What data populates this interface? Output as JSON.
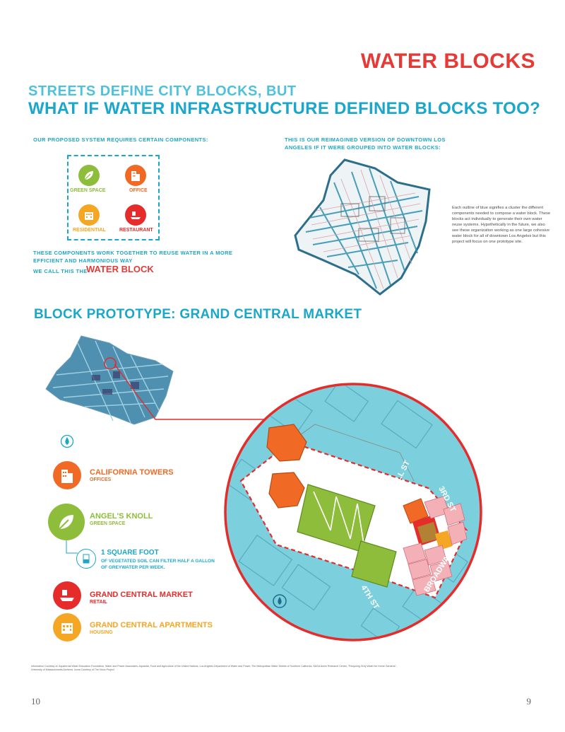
{
  "header": {
    "title": "WATER BLOCKS",
    "subtitle_line1": "STREETS DEFINE CITY BLOCKS, BUT",
    "subtitle_line2": "WHAT IF WATER INFRASTRUCTURE DEFINED BLOCKS TOO?"
  },
  "components": {
    "intro": "OUR PROPOSED SYSTEM REQUIRES CERTAIN COMPONENTS:",
    "items": [
      {
        "label": "GREEN SPACE",
        "icon": "leaf-icon",
        "color": "#8dbd3a"
      },
      {
        "label": "OFFICE",
        "icon": "building-icon",
        "color": "#f06a25"
      },
      {
        "label": "RESIDENTIAL",
        "icon": "house-icon",
        "color": "#f5a623"
      },
      {
        "label": "RESTAURANT",
        "icon": "food-icon",
        "color": "#e62b2b"
      }
    ],
    "together": "THESE COMPONENTS WORK TOGETHER TO REUSE WATER IN A MORE EFFICIENT AND HARMONIOUS WAY",
    "we_call": "WE CALL THIS THE",
    "water_block": "WATER BLOCK"
  },
  "reimagined": {
    "caption": "THIS IS OUR REIMAGINED VERSION OF DOWNTOWN LOS ANGELES IF IT WERE GROUPED INTO WATER BLOCKS:",
    "description": "Each outline of blue signifies a cluster the different components needed to compose a water block. These blocks act individually to generate their own water reuse systems. Hypothetically in the future, we also see these organization working as one large cohesive water block for all of downtown Los Angeles but this project will focus on one prototype site."
  },
  "prototype": {
    "title": "BLOCK PROTOTYPE: GRAND CENTRAL MARKET",
    "legend": [
      {
        "title": "CALIFORNIA TOWERS",
        "sub": "OFFICES",
        "color": "#f06a25",
        "icon": "building-icon"
      },
      {
        "title": "ANGEL'S KNOLL",
        "sub": "GREEN SPACE",
        "color": "#8dbd3a",
        "icon": "leaf-icon"
      },
      {
        "title": "GRAND CENTRAL MARKET",
        "sub": "RETAIL",
        "color": "#e62b2b",
        "icon": "food-icon"
      },
      {
        "title": "GRAND CENTRAL APARTMENTS",
        "sub": "HOUSING",
        "color": "#f5a623",
        "icon": "house-icon"
      }
    ],
    "soil_title": "1 SQUARE FOOT",
    "soil_sub": "OF VEGETATED SOIL CAN FILTER HALF A GALLON OF GREYWATER PER WEEK.",
    "streets": [
      "HILL ST",
      "3RD ST",
      "BROADWAY",
      "4TH ST"
    ]
  },
  "footnote": "Information Courtesy of: Aquafornia Water Education Foundation, Water and Power Associates, Aquastat, Food and Agriculture of the United Nations, Los Angeles Department of Water and Power, The Metropolitan Water District of Southern California, NASA Ames Research Center, \"Recycling Grey Water for Home Gardens\", University of Massachusetts Amherst. Icons Courtesy of The Noun Project",
  "page_numbers": {
    "left": "10",
    "right": "9"
  }
}
